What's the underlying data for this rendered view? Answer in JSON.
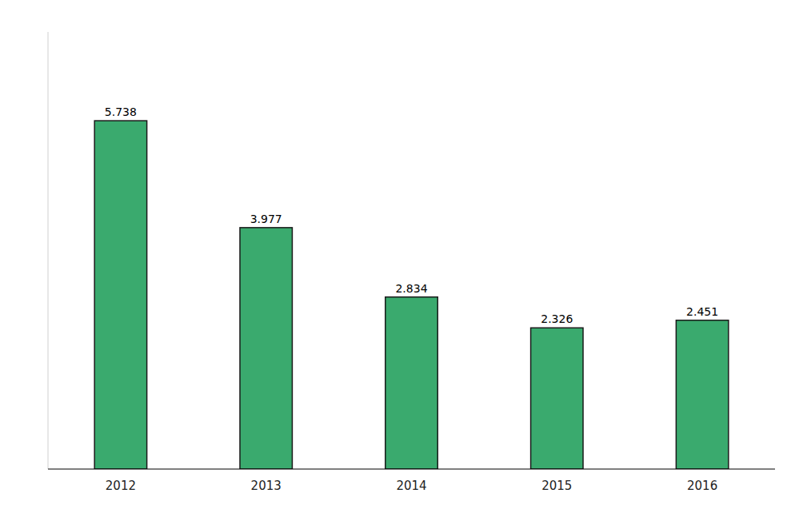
{
  "chart_data": {
    "type": "bar",
    "categories": [
      "2012",
      "2013",
      "2014",
      "2015",
      "2016"
    ],
    "values": [
      5.738,
      3.977,
      2.834,
      2.326,
      2.451
    ],
    "color": "#3aaa6e",
    "ylim": [
      0,
      7.2
    ],
    "data_labels": true,
    "tick_labels": "x",
    "grid": false
  }
}
